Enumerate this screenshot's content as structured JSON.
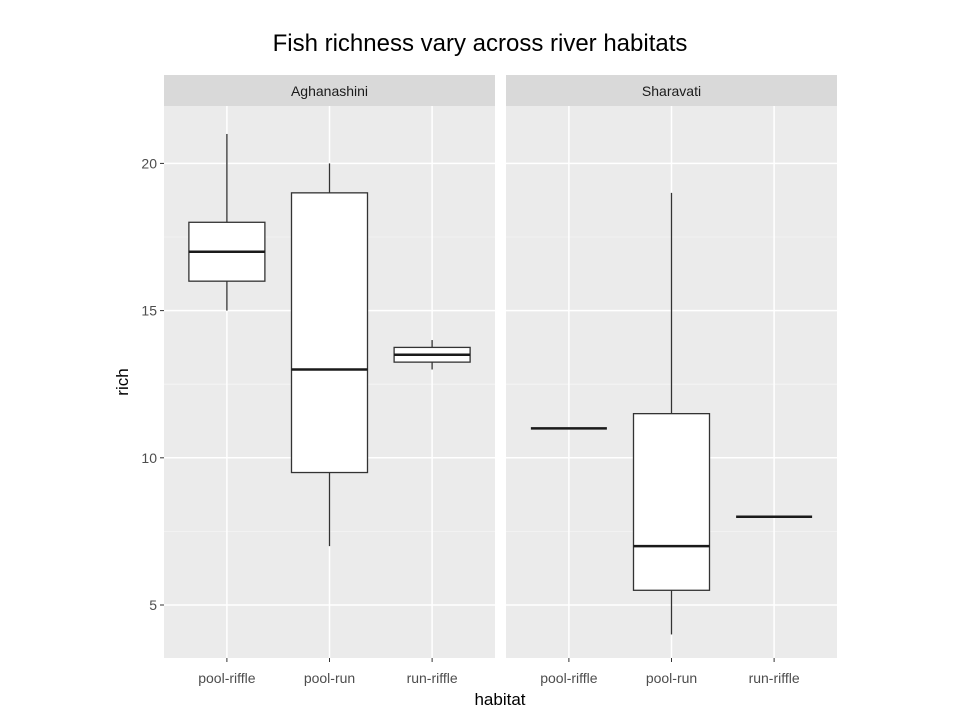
{
  "chart_data": {
    "type": "boxplot",
    "title": "Fish richness vary across river habitats",
    "xlabel": "habitat",
    "ylabel": "rich",
    "ylim": [
      3.2,
      21.95
    ],
    "yticks": [
      5,
      10,
      15,
      20
    ],
    "grid": true,
    "categories": [
      "pool-riffle",
      "pool-run",
      "run-riffle"
    ],
    "facets": [
      {
        "name": "Aghanashini",
        "boxes": [
          {
            "category": "pool-riffle",
            "min": 15,
            "q1": 16,
            "median": 17,
            "q3": 18,
            "max": 21
          },
          {
            "category": "pool-run",
            "min": 7,
            "q1": 9.5,
            "median": 13,
            "q3": 19,
            "max": 20
          },
          {
            "category": "run-riffle",
            "min": 13,
            "q1": 13.25,
            "median": 13.5,
            "q3": 13.75,
            "max": 14
          }
        ]
      },
      {
        "name": "Sharavati",
        "boxes": [
          {
            "category": "pool-riffle",
            "min": 11,
            "q1": 11,
            "median": 11,
            "q3": 11,
            "max": 11
          },
          {
            "category": "pool-run",
            "min": 4,
            "q1": 5.5,
            "median": 7,
            "q3": 11.5,
            "max": 19
          },
          {
            "category": "run-riffle",
            "min": 8,
            "q1": 8,
            "median": 8,
            "q3": 8,
            "max": 8
          }
        ]
      }
    ]
  }
}
